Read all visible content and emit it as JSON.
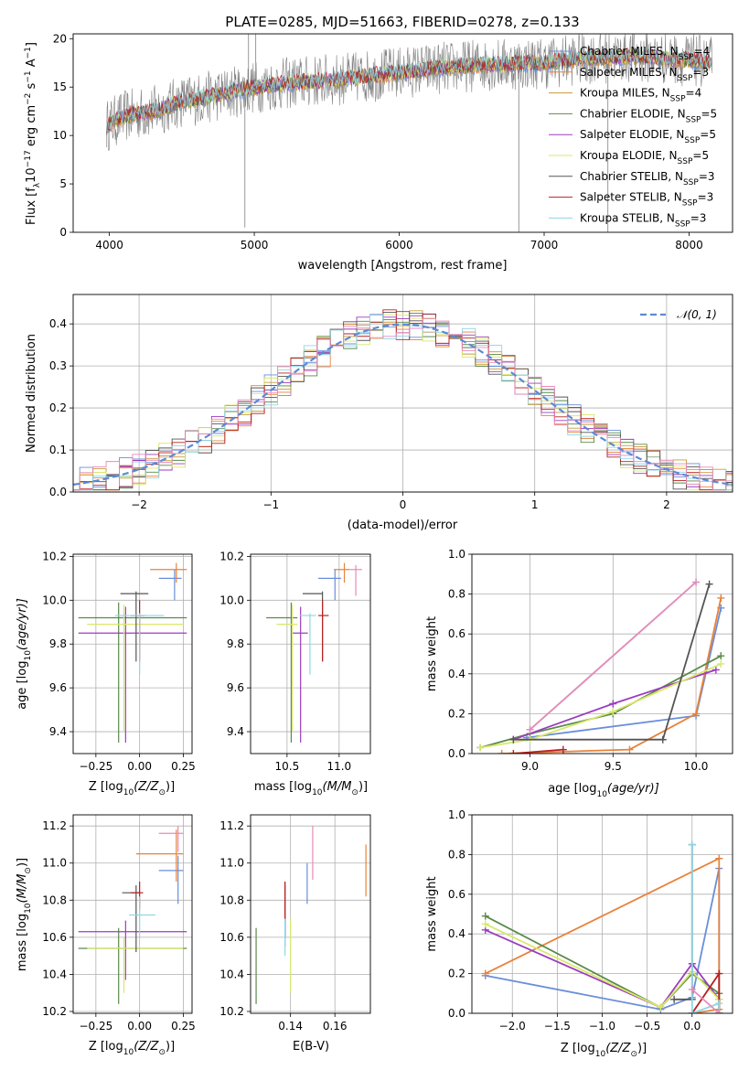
{
  "series_styles": [
    {
      "name": "Chabrier MILES",
      "nssp": "4",
      "color": "#6a8ed9"
    },
    {
      "name": "Salpeter MILES",
      "nssp": "3",
      "color": "#e8823a"
    },
    {
      "name": "Kroupa MILES",
      "nssp": "4",
      "color": "#c89a3c"
    },
    {
      "name": "Chabrier ELODIE",
      "nssp": "5",
      "color": "#5a8a4a"
    },
    {
      "name": "Salpeter ELODIE",
      "nssp": "5",
      "color": "#9b3dbf"
    },
    {
      "name": "Kroupa ELODIE",
      "nssp": "5",
      "color": "#d9e86a"
    },
    {
      "name": "Chabrier STELIB",
      "nssp": "3",
      "color": "#555555"
    },
    {
      "name": "Salpeter STELIB",
      "nssp": "3",
      "color": "#b82020"
    },
    {
      "name": "Kroupa STELIB",
      "nssp": "3",
      "color": "#8fd6e6"
    }
  ],
  "extra_colors": {
    "pink": "#e88ab8",
    "data": "#808080",
    "normal": "#5b8ad6"
  },
  "chart_data": [
    {
      "type": "line",
      "title": "PLATE=0285, MJD=51663, FIBERID=0278, z=0.133",
      "xlabel": "wavelength [Angstrom, rest frame]",
      "ylabel": "Flux [f",
      "ylabel_sub": "λ",
      "ylabel_rest": "10",
      "ylabel_exp": "−17",
      "ylabel_tail": " erg cm",
      "ylabel_exp2": "−2",
      "ylabel_tail2": " s",
      "ylabel_exp3": "−1",
      "ylabel_tail3": " A",
      "ylabel_exp4": "−1",
      "ylabel_end": "]",
      "xlim": [
        3750,
        8300
      ],
      "ylim": [
        0,
        20.5
      ],
      "xticks": [
        4000,
        5000,
        6000,
        7000,
        8000
      ],
      "yticks": [
        0,
        5,
        10,
        15,
        20
      ],
      "legend_position": "top-right",
      "continuum_points": [
        [
          3980,
          11
        ],
        [
          4100,
          12
        ],
        [
          4300,
          12.5
        ],
        [
          4500,
          13.5
        ],
        [
          4700,
          14
        ],
        [
          5000,
          15
        ],
        [
          5300,
          15.5
        ],
        [
          5600,
          15.8
        ],
        [
          6000,
          16.5
        ],
        [
          6300,
          17
        ],
        [
          6600,
          17.3
        ],
        [
          7000,
          17.5
        ],
        [
          7300,
          18
        ],
        [
          7600,
          18.2
        ],
        [
          8000,
          17.8
        ],
        [
          8150,
          17.5
        ]
      ],
      "spikes": [
        [
          4935,
          0.5
        ],
        [
          4960,
          20.5
        ],
        [
          5010,
          20.5
        ],
        [
          6825,
          0
        ],
        [
          7440,
          0
        ]
      ]
    },
    {
      "type": "step",
      "title": "",
      "xlabel": "(data-model)/error",
      "ylabel": "Normed distribution",
      "xlim": [
        -2.5,
        2.5
      ],
      "ylim": [
        0,
        0.47
      ],
      "xticks": [
        -2,
        -1,
        0,
        1,
        2
      ],
      "xtick_labels": [
        "−2",
        "−1",
        "0",
        "1",
        "2"
      ],
      "yticks": [
        0,
        0.1,
        0.2,
        0.3,
        0.4
      ],
      "ytick_labels": [
        "0.0",
        "0.1",
        "0.2",
        "0.3",
        "0.4"
      ],
      "legend": "𝒩(0, 1)",
      "bin_width": 0.1
    },
    {
      "type": "errorbar",
      "xlabel": "Z [log",
      "xlabel_sub": "10",
      "xlabel_rest": "(Z/Z",
      "xlabel_sub2": "⊙",
      "xlabel_end": ")]",
      "ylabel": "age  [log",
      "ylabel_sub": "10",
      "ylabel_end": "(age/yr)]",
      "xlim": [
        -0.38,
        0.3
      ],
      "ylim": [
        9.3,
        10.21
      ],
      "xticks": [
        -0.25,
        0.0,
        0.25
      ],
      "xtick_labels": [
        "−0.25",
        "0.00",
        "0.25"
      ],
      "yticks": [
        9.4,
        9.6,
        9.8,
        10.0,
        10.2
      ],
      "ytick_labels": [
        "9.4",
        "9.6",
        "9.8",
        "10.0",
        "10.2"
      ],
      "points": [
        {
          "s": 0,
          "x": 0.2,
          "xlo": 0.11,
          "xhi": 0.24,
          "y": 10.1,
          "ylo": 10.0,
          "yhi": 10.14
        },
        {
          "s": 1,
          "x": 0.21,
          "xlo": 0.06,
          "xhi": 0.27,
          "y": 10.14,
          "ylo": 10.08,
          "yhi": 10.17
        },
        {
          "s": 3,
          "x": -0.12,
          "xlo": -0.35,
          "xhi": 0.27,
          "y": 9.92,
          "ylo": 9.35,
          "yhi": 9.99
        },
        {
          "s": 4,
          "x": -0.08,
          "xlo": -0.35,
          "xhi": 0.27,
          "y": 9.85,
          "ylo": 9.35,
          "yhi": 9.97
        },
        {
          "s": 5,
          "x": -0.09,
          "xlo": -0.3,
          "xhi": 0.25,
          "y": 9.89,
          "ylo": 9.4,
          "yhi": 9.98
        },
        {
          "s": 6,
          "x": -0.02,
          "xlo": -0.11,
          "xhi": 0.05,
          "y": 10.03,
          "ylo": 9.72,
          "yhi": 10.04
        },
        {
          "s": 7,
          "x": 0.0,
          "xlo": -0.05,
          "xhi": 0.03,
          "y": 9.93,
          "ylo": 9.72,
          "yhi": 10.0
        },
        {
          "s": 8,
          "x": 0.0,
          "xlo": -0.14,
          "xhi": 0.14,
          "y": 9.93,
          "ylo": 9.66,
          "yhi": 9.94
        }
      ]
    },
    {
      "type": "errorbar",
      "xlabel": "mass [log",
      "xlabel_sub": "10",
      "xlabel_rest": "(M/M",
      "xlabel_sub2": "⊙",
      "xlabel_end": ")]",
      "xlim": [
        10.15,
        11.3
      ],
      "ylim": [
        9.3,
        10.21
      ],
      "xticks": [
        10.5,
        11.0
      ],
      "xtick_labels": [
        "10.5",
        "11.0"
      ],
      "yticks": [
        9.4,
        9.6,
        9.8,
        10.0,
        10.2
      ],
      "ytick_labels": [
        "9.4",
        "9.6",
        "9.8",
        "10.0",
        "10.2"
      ],
      "points": [
        {
          "s": 0,
          "x": 10.96,
          "xlo": 10.8,
          "xhi": 11.02,
          "y": 10.1,
          "ylo": 10.0,
          "yhi": 10.14
        },
        {
          "s": 1,
          "x": 11.05,
          "xlo": 10.95,
          "xhi": 11.1,
          "y": 10.14,
          "ylo": 10.08,
          "yhi": 10.17
        },
        {
          "s": 3,
          "x": 10.54,
          "xlo": 10.3,
          "xhi": 10.6,
          "y": 9.92,
          "ylo": 9.35,
          "yhi": 9.99
        },
        {
          "s": 4,
          "x": 10.63,
          "xlo": 10.55,
          "xhi": 10.7,
          "y": 9.85,
          "ylo": 9.35,
          "yhi": 9.97
        },
        {
          "s": 5,
          "x": 10.55,
          "xlo": 10.4,
          "xhi": 10.6,
          "y": 9.89,
          "ylo": 9.4,
          "yhi": 9.98
        },
        {
          "s": 6,
          "x": 10.84,
          "xlo": 10.65,
          "xhi": 10.84,
          "y": 10.03,
          "ylo": 9.72,
          "yhi": 10.04
        },
        {
          "s": 7,
          "x": 10.84,
          "xlo": 10.8,
          "xhi": 10.9,
          "y": 9.93,
          "ylo": 9.72,
          "yhi": 10.0
        },
        {
          "s": 8,
          "x": 10.72,
          "xlo": 10.62,
          "xhi": 10.78,
          "y": 9.93,
          "ylo": 9.66,
          "yhi": 9.94
        },
        {
          "s": 9,
          "x": 11.16,
          "xlo": 11.1,
          "xhi": 11.22,
          "y": 10.14,
          "ylo": 10.02,
          "yhi": 10.16
        }
      ]
    },
    {
      "type": "line",
      "xlabel": "age  [log",
      "xlabel_sub": "10",
      "xlabel_end": "(age/yr)]",
      "ylabel": "mass weight",
      "xlim": [
        8.65,
        10.22
      ],
      "ylim": [
        0,
        1.0
      ],
      "xticks": [
        9.0,
        9.5,
        10.0
      ],
      "xtick_labels": [
        "9.0",
        "9.5",
        "10.0"
      ],
      "yticks": [
        0,
        0.2,
        0.4,
        0.6,
        0.8,
        1.0
      ],
      "ytick_labels": [
        "0.0",
        "0.2",
        "0.4",
        "0.6",
        "0.8",
        "1.0"
      ],
      "series": [
        {
          "s": 0,
          "x": [
            8.98,
            10.0,
            10.15
          ],
          "y": [
            0.08,
            0.19,
            0.73
          ]
        },
        {
          "s": 1,
          "x": [
            8.83,
            9.6,
            10.0,
            10.15
          ],
          "y": [
            0.0,
            0.02,
            0.2,
            0.78
          ]
        },
        {
          "s": 3,
          "x": [
            8.7,
            9.0,
            9.5,
            10.15
          ],
          "y": [
            0.03,
            0.1,
            0.2,
            0.49
          ]
        },
        {
          "s": 4,
          "x": [
            8.9,
            9.5,
            10.12
          ],
          "y": [
            0.07,
            0.25,
            0.42
          ]
        },
        {
          "s": 5,
          "x": [
            8.7,
            9.0,
            9.5,
            10.15
          ],
          "y": [
            0.03,
            0.07,
            0.21,
            0.45
          ]
        },
        {
          "s": 6,
          "x": [
            8.9,
            9.8,
            10.08
          ],
          "y": [
            0.07,
            0.07,
            0.85
          ]
        },
        {
          "s": 7,
          "x": [
            8.9,
            9.2
          ],
          "y": [
            0.0,
            0.02
          ]
        },
        {
          "s": 8,
          "x": [
            9.0,
            10.0
          ],
          "y": [
            0.12,
            0.86
          ]
        },
        {
          "s": 9,
          "x": [
            9.0,
            10.0
          ],
          "y": [
            0.12,
            0.86
          ]
        }
      ]
    },
    {
      "type": "errorbar",
      "xlabel": "Z [log",
      "xlabel_sub": "10",
      "xlabel_rest": "(Z/Z",
      "xlabel_sub2": "⊙",
      "xlabel_end": ")]",
      "ylabel": "mass [log",
      "ylabel_sub": "10",
      "ylabel_rest": "(M/M",
      "ylabel_sub2": "⊙",
      "ylabel_end": ")]",
      "xlim": [
        -0.38,
        0.3
      ],
      "ylim": [
        10.19,
        11.26
      ],
      "xticks": [
        -0.25,
        0.0,
        0.25
      ],
      "xtick_labels": [
        "−0.25",
        "0.00",
        "0.25"
      ],
      "yticks": [
        10.2,
        10.4,
        10.6,
        10.8,
        11.0,
        11.2
      ],
      "ytick_labels": [
        "10.2",
        "10.4",
        "10.6",
        "10.8",
        "11.0",
        "11.2"
      ],
      "points": [
        {
          "s": 0,
          "x": 0.22,
          "xlo": 0.11,
          "xhi": 0.25,
          "y": 10.96,
          "ylo": 10.78,
          "yhi": 11.04
        },
        {
          "s": 1,
          "x": 0.21,
          "xlo": -0.02,
          "xhi": 0.25,
          "y": 11.05,
          "ylo": 10.9,
          "yhi": 11.18
        },
        {
          "s": 3,
          "x": -0.12,
          "xlo": -0.35,
          "xhi": 0.27,
          "y": 10.54,
          "ylo": 10.24,
          "yhi": 10.65
        },
        {
          "s": 4,
          "x": -0.08,
          "xlo": -0.35,
          "xhi": 0.27,
          "y": 10.63,
          "ylo": 10.37,
          "yhi": 10.69
        },
        {
          "s": 5,
          "x": -0.09,
          "xlo": -0.3,
          "xhi": 0.25,
          "y": 10.54,
          "ylo": 10.3,
          "yhi": 10.6
        },
        {
          "s": 6,
          "x": -0.02,
          "xlo": -0.1,
          "xhi": 0.0,
          "y": 10.84,
          "ylo": 10.52,
          "yhi": 10.88
        },
        {
          "s": 7,
          "x": 0.0,
          "xlo": -0.05,
          "xhi": 0.02,
          "y": 10.84,
          "ylo": 10.75,
          "yhi": 10.9
        },
        {
          "s": 8,
          "x": 0.0,
          "xlo": -0.06,
          "xhi": 0.09,
          "y": 10.72,
          "ylo": 10.6,
          "yhi": 10.82
        },
        {
          "s": 9,
          "x": 0.22,
          "xlo": 0.11,
          "xhi": 0.25,
          "y": 11.16,
          "ylo": 11.06,
          "yhi": 11.2
        }
      ]
    },
    {
      "type": "errorbar",
      "xlabel": "E(B-V)",
      "xlim": [
        0.122,
        0.176
      ],
      "ylim": [
        10.19,
        11.26
      ],
      "xticks": [
        0.14,
        0.16
      ],
      "xtick_labels": [
        "0.14",
        "0.16"
      ],
      "yticks": [
        10.2,
        10.4,
        10.6,
        10.8,
        11.0,
        11.2
      ],
      "ytick_labels": [
        "10.2",
        "10.4",
        "10.6",
        "10.8",
        "11.0",
        "11.2"
      ],
      "points": [
        {
          "s": 3,
          "x": 0.1245,
          "y": 10.45,
          "ylo": 10.24,
          "yhi": 10.65
        },
        {
          "s": 4,
          "x": 0.1375,
          "y": 10.72,
          "ylo": 10.55,
          "yhi": 10.9
        },
        {
          "s": 6,
          "x": 0.1375,
          "y": 10.76,
          "ylo": 10.6,
          "yhi": 10.88
        },
        {
          "s": 7,
          "x": 0.1375,
          "y": 10.8,
          "ylo": 10.6,
          "yhi": 10.9
        },
        {
          "s": 8,
          "x": 0.1375,
          "y": 10.6,
          "ylo": 10.5,
          "yhi": 10.7
        },
        {
          "s": 5,
          "x": 0.14,
          "y": 10.5,
          "ylo": 10.3,
          "yhi": 10.7
        },
        {
          "s": 0,
          "x": 0.1475,
          "y": 10.88,
          "ylo": 10.78,
          "yhi": 11.0
        },
        {
          "s": 9,
          "x": 0.15,
          "y": 11.05,
          "ylo": 10.91,
          "yhi": 11.2
        },
        {
          "s": 1,
          "x": 0.174,
          "y": 10.95,
          "ylo": 10.82,
          "yhi": 11.1
        }
      ]
    },
    {
      "type": "line",
      "xlabel": "Z [log",
      "xlabel_sub": "10",
      "xlabel_rest": "(Z/Z",
      "xlabel_sub2": "⊙",
      "xlabel_end": ")]",
      "ylabel": "mass weight",
      "xlim": [
        -2.45,
        0.45
      ],
      "ylim": [
        0,
        1.0
      ],
      "xticks": [
        -2.0,
        -1.5,
        -1.0,
        -0.5,
        0.0
      ],
      "xtick_labels": [
        "−2.0",
        "−1.5",
        "−1.0",
        "−0.5",
        "0.0"
      ],
      "yticks": [
        0,
        0.2,
        0.4,
        0.6,
        0.8,
        1.0
      ],
      "ytick_labels": [
        "0.0",
        "0.2",
        "0.4",
        "0.6",
        "0.8",
        "1.0"
      ],
      "series": [
        {
          "s": 0,
          "x": [
            -2.3,
            -0.35,
            0.0,
            0.3,
            0.3
          ],
          "y": [
            0.19,
            0.02,
            0.08,
            0.73,
            0.0
          ]
        },
        {
          "s": 1,
          "x": [
            -2.3,
            0.3,
            0.3,
            0.0
          ],
          "y": [
            0.2,
            0.78,
            0.02,
            0.0
          ]
        },
        {
          "s": 3,
          "x": [
            -2.3,
            -0.35,
            0.0,
            0.3,
            0.3
          ],
          "y": [
            0.49,
            0.03,
            0.2,
            0.1,
            0.0
          ]
        },
        {
          "s": 4,
          "x": [
            -2.3,
            -0.35,
            0.0,
            0.3
          ],
          "y": [
            0.42,
            0.03,
            0.25,
            0.07
          ]
        },
        {
          "s": 5,
          "x": [
            -2.3,
            -0.35,
            0.0,
            0.3
          ],
          "y": [
            0.45,
            0.03,
            0.21,
            0.07
          ]
        },
        {
          "s": 6,
          "x": [
            -0.2,
            0.0,
            0.0
          ],
          "y": [
            0.07,
            0.07,
            0.85
          ]
        },
        {
          "s": 7,
          "x": [
            0.0,
            0.3,
            0.3
          ],
          "y": [
            0.0,
            0.2,
            0.0
          ]
        },
        {
          "s": 8,
          "x": [
            0.0,
            0.0,
            0.3,
            0.3
          ],
          "y": [
            0.85,
            0.0,
            0.05,
            0.0
          ]
        },
        {
          "s": 9,
          "x": [
            0.0,
            0.3
          ],
          "y": [
            0.12,
            0.0
          ]
        }
      ]
    }
  ]
}
